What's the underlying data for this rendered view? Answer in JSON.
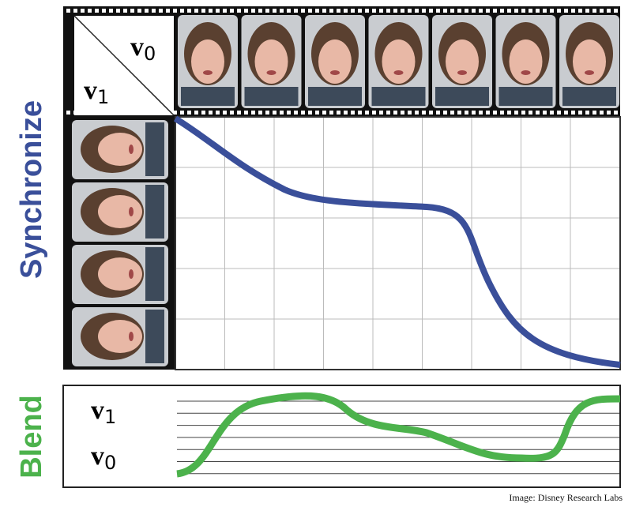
{
  "labels": {
    "synchronize": "Synchronize",
    "blend": "Blend",
    "top_v0": {
      "symbol": "v",
      "subscript": "0"
    },
    "top_v1": {
      "symbol": "v",
      "subscript": "1"
    },
    "blend_v1": {
      "symbol": "v",
      "subscript": "1"
    },
    "blend_v0": {
      "symbol": "v",
      "subscript": "0"
    }
  },
  "credit": "Image: Disney Research Labs"
}
